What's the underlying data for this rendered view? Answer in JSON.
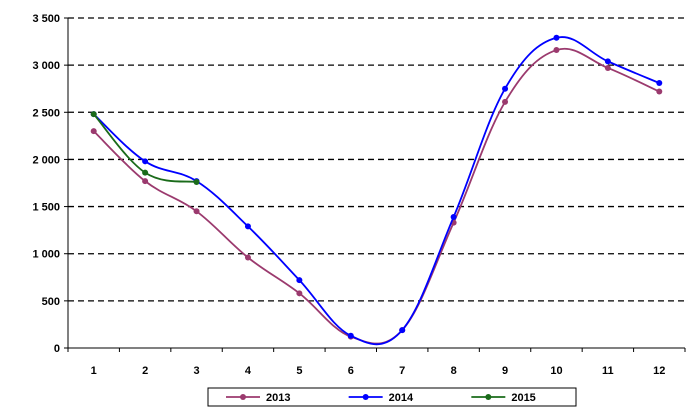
{
  "chart_data": {
    "type": "line",
    "title": "",
    "xlabel": "",
    "ylabel": "",
    "categories": [
      "1",
      "2",
      "3",
      "4",
      "5",
      "6",
      "7",
      "8",
      "9",
      "10",
      "11",
      "12"
    ],
    "ylim": [
      0,
      3500
    ],
    "yticks": [
      0,
      500,
      1000,
      1500,
      2000,
      2500,
      3000,
      3500
    ],
    "ytick_labels": [
      "0",
      "500",
      "1 000",
      "1 500",
      "2 000",
      "2 500",
      "3 000",
      "3 500"
    ],
    "grid": "horizontal dashed",
    "legend_position": "bottom",
    "series": [
      {
        "name": "2013",
        "color": "#9b3a6e",
        "values": [
          2300,
          1770,
          1450,
          960,
          580,
          120,
          190,
          1330,
          2610,
          3160,
          2970,
          2720
        ]
      },
      {
        "name": "2014",
        "color": "#0000ff",
        "values": [
          2480,
          1980,
          1770,
          1290,
          720,
          130,
          190,
          1390,
          2750,
          3290,
          3040,
          2810
        ]
      },
      {
        "name": "2015",
        "color": "#1a6b1a",
        "values": [
          2480,
          1860,
          1760,
          null,
          null,
          null,
          null,
          null,
          null,
          null,
          null,
          null
        ]
      }
    ]
  }
}
